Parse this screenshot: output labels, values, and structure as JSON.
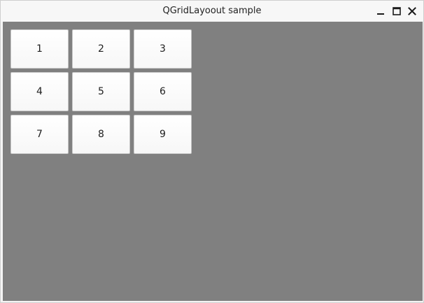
{
  "window": {
    "title": "QGridLayoout sample"
  },
  "titlebar_buttons": {
    "minimize": "minimize-icon",
    "maximize": "maximize-icon",
    "close": "close-icon"
  },
  "grid": {
    "buttons": [
      "1",
      "2",
      "3",
      "4",
      "5",
      "6",
      "7",
      "8",
      "9"
    ]
  },
  "colors": {
    "content_background": "#808080",
    "titlebar_background": "#f7f7f7",
    "button_background": "#ffffff"
  }
}
